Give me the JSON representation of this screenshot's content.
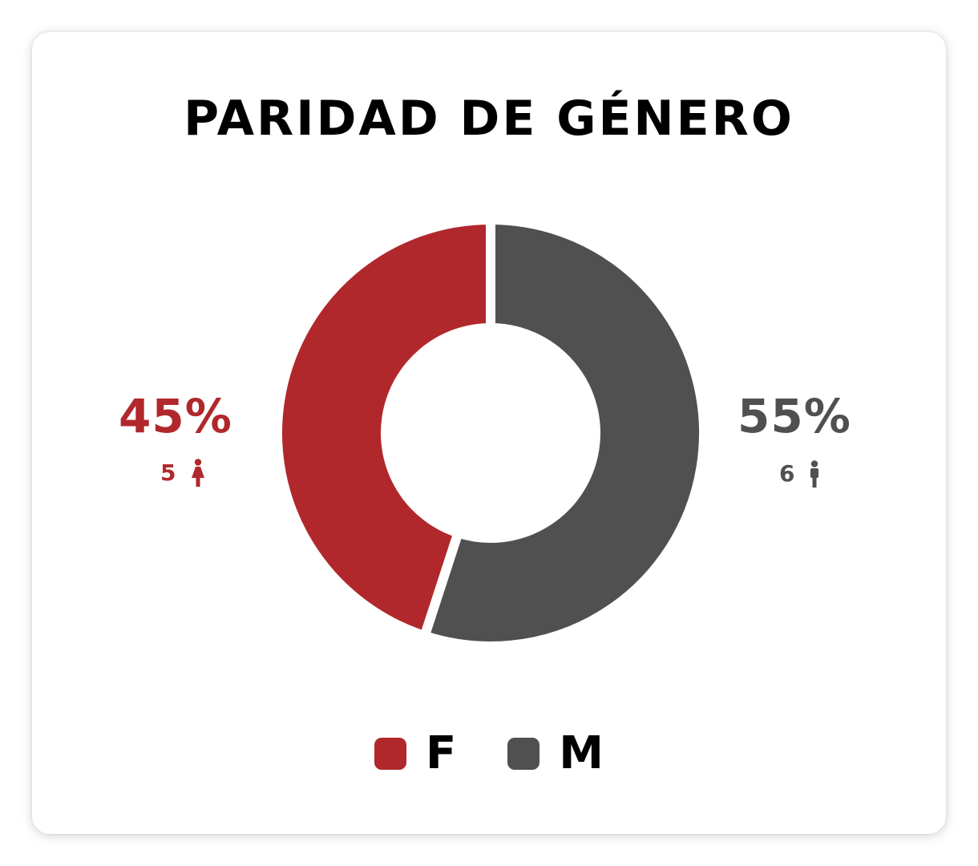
{
  "chart_data": {
    "type": "pie",
    "title": "PARIDAD DE GÉNERO",
    "categories": [
      "F",
      "M"
    ],
    "values": [
      45,
      55
    ],
    "percent_labels": [
      "45%",
      "55%"
    ],
    "counts": [
      "5",
      "6"
    ],
    "colors": [
      "#b1282c",
      "#505050"
    ],
    "count_icons": [
      "female-person-icon",
      "male-person-icon"
    ],
    "legend_placement": "bottom",
    "style": "donut"
  }
}
